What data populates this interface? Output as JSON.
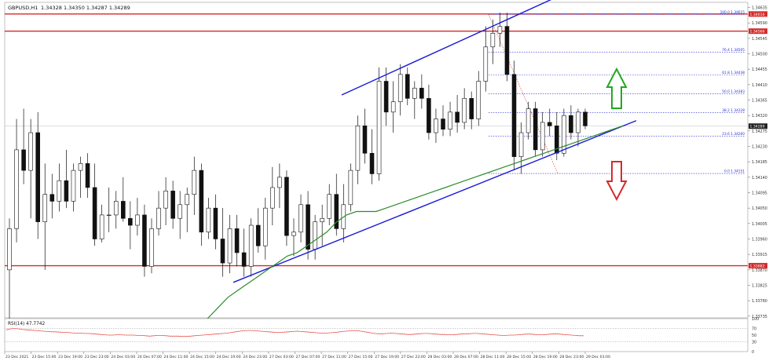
{
  "chart_data": [
    {
      "type": "candlestick",
      "symbol_label": "GBPUSD,H1",
      "ohlc_label": "1.34328 1.34350 1.34287 1.34289",
      "y_ticks": [
        "1.34635",
        "1.34590",
        "1.34545",
        "1.34500",
        "1.34455",
        "1.34410",
        "1.34365",
        "1.34320",
        "1.34275",
        "1.34230",
        "1.34185",
        "1.34140",
        "1.34095",
        "1.34050",
        "1.34005",
        "1.33960",
        "1.33915",
        "1.33870",
        "1.33825",
        "1.33780",
        "1.33735"
      ],
      "y_range": [
        1.3373,
        1.3465
      ],
      "x_ticks": [
        "23 Dec 2021",
        "23 Dec 15:00",
        "23 Dec 19:00",
        "23 Dec 23:00",
        "24 Dec 03:00",
        "24 Dec 07:00",
        "24 Dec 11:00",
        "24 Dec 15:00",
        "24 Dec 19:00",
        "24 Dec 23:00",
        "27 Dec 03:00",
        "27 Dec 07:00",
        "27 Dec 11:00",
        "27 Dec 15:00",
        "27 Dec 19:00",
        "27 Dec 23:00",
        "28 Dec 03:00",
        "28 Dec 07:00",
        "28 Dec 11:00",
        "28 Dec 15:00",
        "28 Dec 19:00",
        "28 Dec 23:00",
        "29 Dec 03:00"
      ],
      "current_price": "1.34289",
      "horizontal_levels": [
        {
          "price": 1.34616,
          "label": "1.34616",
          "color": "#d62a2a"
        },
        {
          "price": 1.34566,
          "label": "1.34566",
          "color": "#d62a2a"
        },
        {
          "price": 1.33882,
          "label": "1.33882",
          "color": "#d62a2a"
        }
      ],
      "fibonacci": {
        "color": "#2a2ad6",
        "levels": [
          {
            "label": "100.0 1.34615",
            "price": 1.34615
          },
          {
            "label": "76.4 1.34505",
            "price": 1.34505
          },
          {
            "label": "61.8 1.34438",
            "price": 1.34438
          },
          {
            "label": "50.0 1.34383",
            "price": 1.34383
          },
          {
            "label": "38.2 1.34328",
            "price": 1.34328
          },
          {
            "label": "23.6 1.34260",
            "price": 1.3426
          },
          {
            "label": "0.0 1.34151",
            "price": 1.34151
          }
        ]
      },
      "candles": [
        {
          "o": 1.3387,
          "h": 1.3402,
          "l": 1.3372,
          "c": 1.3399
        },
        {
          "o": 1.3399,
          "h": 1.3431,
          "l": 1.3395,
          "c": 1.3422
        },
        {
          "o": 1.3422,
          "h": 1.3434,
          "l": 1.3412,
          "c": 1.3416
        },
        {
          "o": 1.3416,
          "h": 1.3431,
          "l": 1.3402,
          "c": 1.3427
        },
        {
          "o": 1.3427,
          "h": 1.3433,
          "l": 1.3396,
          "c": 1.3401
        },
        {
          "o": 1.3401,
          "h": 1.3418,
          "l": 1.3387,
          "c": 1.3409
        },
        {
          "o": 1.3409,
          "h": 1.3415,
          "l": 1.3402,
          "c": 1.3407
        },
        {
          "o": 1.3407,
          "h": 1.3418,
          "l": 1.3404,
          "c": 1.3413
        },
        {
          "o": 1.3413,
          "h": 1.3422,
          "l": 1.3405,
          "c": 1.3407
        },
        {
          "o": 1.3407,
          "h": 1.3418,
          "l": 1.3404,
          "c": 1.3416
        },
        {
          "o": 1.3416,
          "h": 1.342,
          "l": 1.3408,
          "c": 1.3418
        },
        {
          "o": 1.3418,
          "h": 1.3421,
          "l": 1.3408,
          "c": 1.3411
        },
        {
          "o": 1.3411,
          "h": 1.3418,
          "l": 1.3394,
          "c": 1.3396
        },
        {
          "o": 1.3396,
          "h": 1.3406,
          "l": 1.3395,
          "c": 1.3403
        },
        {
          "o": 1.3403,
          "h": 1.3411,
          "l": 1.3398,
          "c": 1.3403
        },
        {
          "o": 1.3403,
          "h": 1.341,
          "l": 1.3399,
          "c": 1.3407
        },
        {
          "o": 1.3407,
          "h": 1.3414,
          "l": 1.3401,
          "c": 1.3402
        },
        {
          "o": 1.3402,
          "h": 1.3407,
          "l": 1.3393,
          "c": 1.34
        },
        {
          "o": 1.34,
          "h": 1.3408,
          "l": 1.3397,
          "c": 1.3403
        },
        {
          "o": 1.3403,
          "h": 1.3406,
          "l": 1.3385,
          "c": 1.3388
        },
        {
          "o": 1.3388,
          "h": 1.3402,
          "l": 1.3386,
          "c": 1.3399
        },
        {
          "o": 1.3399,
          "h": 1.341,
          "l": 1.3397,
          "c": 1.3405
        },
        {
          "o": 1.3405,
          "h": 1.3414,
          "l": 1.34,
          "c": 1.341
        },
        {
          "o": 1.341,
          "h": 1.3413,
          "l": 1.3399,
          "c": 1.3402
        },
        {
          "o": 1.3402,
          "h": 1.341,
          "l": 1.3396,
          "c": 1.3406
        },
        {
          "o": 1.3406,
          "h": 1.3411,
          "l": 1.3398,
          "c": 1.3409
        },
        {
          "o": 1.3409,
          "h": 1.342,
          "l": 1.3403,
          "c": 1.3416
        },
        {
          "o": 1.3416,
          "h": 1.3418,
          "l": 1.3394,
          "c": 1.3398
        },
        {
          "o": 1.3398,
          "h": 1.3408,
          "l": 1.3396,
          "c": 1.3405
        },
        {
          "o": 1.3405,
          "h": 1.3409,
          "l": 1.3393,
          "c": 1.3396
        },
        {
          "o": 1.3396,
          "h": 1.3405,
          "l": 1.3385,
          "c": 1.3389
        },
        {
          "o": 1.3389,
          "h": 1.3403,
          "l": 1.3386,
          "c": 1.3399
        },
        {
          "o": 1.3399,
          "h": 1.3403,
          "l": 1.3388,
          "c": 1.3392
        },
        {
          "o": 1.3392,
          "h": 1.3399,
          "l": 1.3385,
          "c": 1.3388
        },
        {
          "o": 1.3388,
          "h": 1.3402,
          "l": 1.3385,
          "c": 1.34
        },
        {
          "o": 1.34,
          "h": 1.3405,
          "l": 1.3392,
          "c": 1.3394
        },
        {
          "o": 1.3394,
          "h": 1.3408,
          "l": 1.339,
          "c": 1.3405
        },
        {
          "o": 1.3405,
          "h": 1.3417,
          "l": 1.34,
          "c": 1.3411
        },
        {
          "o": 1.3411,
          "h": 1.3418,
          "l": 1.3405,
          "c": 1.3414
        },
        {
          "o": 1.3414,
          "h": 1.3416,
          "l": 1.3394,
          "c": 1.3397
        },
        {
          "o": 1.3397,
          "h": 1.3402,
          "l": 1.3391,
          "c": 1.3398
        },
        {
          "o": 1.3398,
          "h": 1.3409,
          "l": 1.3395,
          "c": 1.3406
        },
        {
          "o": 1.3406,
          "h": 1.341,
          "l": 1.339,
          "c": 1.3393
        },
        {
          "o": 1.3393,
          "h": 1.3403,
          "l": 1.339,
          "c": 1.3401
        },
        {
          "o": 1.3401,
          "h": 1.3406,
          "l": 1.3394,
          "c": 1.3402
        },
        {
          "o": 1.3402,
          "h": 1.3412,
          "l": 1.34,
          "c": 1.3409
        },
        {
          "o": 1.3409,
          "h": 1.3415,
          "l": 1.3397,
          "c": 1.3399
        },
        {
          "o": 1.3399,
          "h": 1.3412,
          "l": 1.3395,
          "c": 1.3406
        },
        {
          "o": 1.3406,
          "h": 1.3418,
          "l": 1.3404,
          "c": 1.3416
        },
        {
          "o": 1.3416,
          "h": 1.3432,
          "l": 1.3412,
          "c": 1.3429
        },
        {
          "o": 1.3429,
          "h": 1.3434,
          "l": 1.3418,
          "c": 1.3421
        },
        {
          "o": 1.3421,
          "h": 1.3428,
          "l": 1.3412,
          "c": 1.3415
        },
        {
          "o": 1.3415,
          "h": 1.3446,
          "l": 1.3413,
          "c": 1.3442
        },
        {
          "o": 1.3442,
          "h": 1.3446,
          "l": 1.3429,
          "c": 1.3433
        },
        {
          "o": 1.3433,
          "h": 1.3442,
          "l": 1.3427,
          "c": 1.3436
        },
        {
          "o": 1.3436,
          "h": 1.3447,
          "l": 1.3432,
          "c": 1.3444
        },
        {
          "o": 1.3444,
          "h": 1.3446,
          "l": 1.3435,
          "c": 1.3437
        },
        {
          "o": 1.3437,
          "h": 1.3442,
          "l": 1.3431,
          "c": 1.344
        },
        {
          "o": 1.344,
          "h": 1.3444,
          "l": 1.3434,
          "c": 1.3437
        },
        {
          "o": 1.3437,
          "h": 1.3441,
          "l": 1.3425,
          "c": 1.3427
        },
        {
          "o": 1.3427,
          "h": 1.3434,
          "l": 1.3424,
          "c": 1.3431
        },
        {
          "o": 1.3431,
          "h": 1.3435,
          "l": 1.3426,
          "c": 1.3428
        },
        {
          "o": 1.3428,
          "h": 1.3436,
          "l": 1.3426,
          "c": 1.3433
        },
        {
          "o": 1.3433,
          "h": 1.3438,
          "l": 1.3427,
          "c": 1.343
        },
        {
          "o": 1.343,
          "h": 1.344,
          "l": 1.3428,
          "c": 1.3437
        },
        {
          "o": 1.3437,
          "h": 1.3439,
          "l": 1.3428,
          "c": 1.3431
        },
        {
          "o": 1.3431,
          "h": 1.3445,
          "l": 1.3429,
          "c": 1.3442
        },
        {
          "o": 1.3442,
          "h": 1.3458,
          "l": 1.3439,
          "c": 1.3452
        },
        {
          "o": 1.3452,
          "h": 1.346,
          "l": 1.3447,
          "c": 1.3456
        },
        {
          "o": 1.3456,
          "h": 1.3462,
          "l": 1.3452,
          "c": 1.3458
        },
        {
          "o": 1.3458,
          "h": 1.3462,
          "l": 1.3442,
          "c": 1.3444
        },
        {
          "o": 1.3444,
          "h": 1.3448,
          "l": 1.3416,
          "c": 1.342
        },
        {
          "o": 1.342,
          "h": 1.343,
          "l": 1.3415,
          "c": 1.3427
        },
        {
          "o": 1.3427,
          "h": 1.3436,
          "l": 1.3425,
          "c": 1.3434
        },
        {
          "o": 1.3434,
          "h": 1.3436,
          "l": 1.342,
          "c": 1.3422
        },
        {
          "o": 1.3422,
          "h": 1.3433,
          "l": 1.342,
          "c": 1.343
        },
        {
          "o": 1.343,
          "h": 1.3434,
          "l": 1.3426,
          "c": 1.3429
        },
        {
          "o": 1.3429,
          "h": 1.3433,
          "l": 1.3419,
          "c": 1.3421
        },
        {
          "o": 1.3421,
          "h": 1.3434,
          "l": 1.342,
          "c": 1.3432
        },
        {
          "o": 1.3432,
          "h": 1.3435,
          "l": 1.3425,
          "c": 1.3427
        },
        {
          "o": 1.3427,
          "h": 1.3434,
          "l": 1.3423,
          "c": 1.3433
        },
        {
          "o": 1.3433,
          "h": 1.3434,
          "l": 1.3428,
          "c": 1.3429
        }
      ],
      "ma_values": [
        1.3368,
        1.337,
        1.3373,
        1.3376,
        1.3379,
        1.3381,
        1.3383,
        1.3385,
        1.3387,
        1.3389,
        1.3391,
        1.3392,
        1.3394,
        1.3396,
        1.3398,
        1.3401,
        1.3403,
        1.3404,
        1.3404,
        1.3404,
        1.3405,
        1.3406,
        1.3407,
        1.3408,
        1.3409,
        1.341,
        1.3411,
        1.3412,
        1.3413,
        1.3414,
        1.3415,
        1.3416,
        1.3417,
        1.3418,
        1.3419,
        1.342,
        1.3421,
        1.3422,
        1.3423,
        1.3424,
        1.3425,
        1.3426,
        1.3427,
        1.3428,
        1.3429
      ],
      "ma_start_index": 37,
      "ma_color": "#2e8b2e",
      "arrows": [
        {
          "direction": "up",
          "color": "#22a822"
        },
        {
          "direction": "down",
          "color": "#d62a2a"
        }
      ]
    },
    {
      "type": "line",
      "label": "RSI(14) 47.7742",
      "ylim": [
        0,
        100
      ],
      "y_ticks": [
        "100",
        "70",
        "50",
        "30",
        "0"
      ],
      "color": "#e8544f",
      "values": [
        66,
        69,
        70,
        69,
        67,
        66,
        65,
        64,
        63,
        62,
        61,
        60,
        60,
        59,
        58,
        58,
        57,
        56,
        56,
        55,
        55,
        54,
        53,
        52,
        51,
        50,
        50,
        51,
        51,
        50,
        50,
        50,
        49,
        49,
        48,
        47,
        48,
        49,
        49,
        48,
        47,
        47,
        47,
        46,
        46,
        47,
        48,
        49,
        50,
        51,
        52,
        53,
        54,
        55,
        56,
        58,
        60,
        62,
        63,
        64,
        64,
        63,
        62,
        61,
        60,
        59,
        58,
        58,
        59,
        60,
        61,
        62,
        61,
        60,
        59,
        58,
        57,
        56,
        56,
        57,
        58,
        59,
        61,
        62,
        63,
        64,
        63,
        61,
        59,
        57,
        55,
        54,
        54,
        55,
        56,
        55,
        54,
        53,
        52,
        52,
        53,
        54,
        55,
        55,
        54,
        53,
        52,
        52,
        51,
        51,
        52,
        53,
        54,
        54,
        55,
        55,
        54,
        53,
        52,
        51,
        50,
        49,
        49,
        50,
        50,
        51,
        52,
        53,
        53,
        52,
        51,
        51,
        52,
        53,
        54,
        53,
        52,
        51,
        50,
        49,
        48,
        48
      ]
    }
  ]
}
